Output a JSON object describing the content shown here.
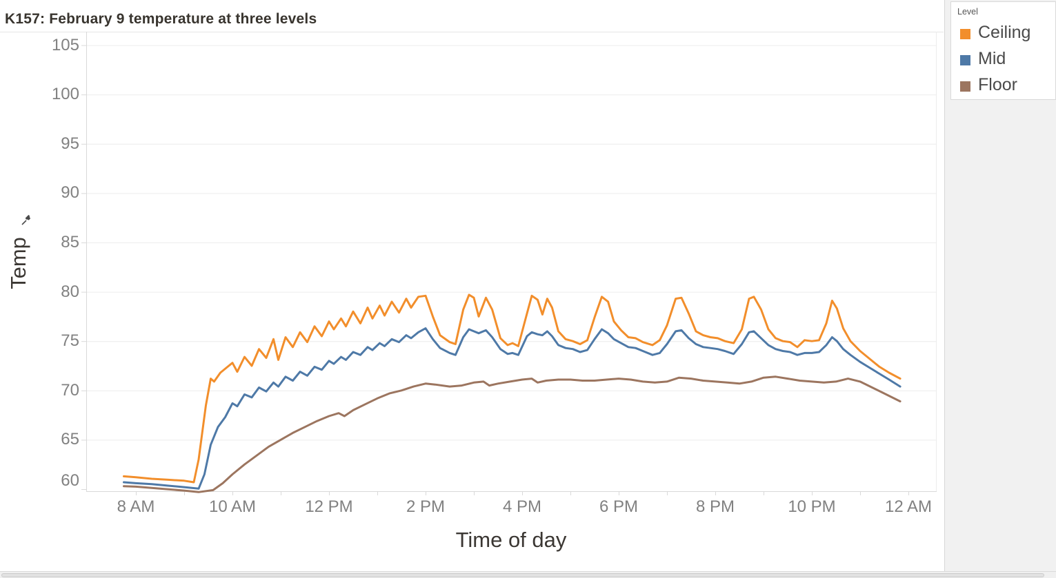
{
  "title": "K157: February 9 temperature at three levels",
  "legend": {
    "title": "Level"
  },
  "icons": {
    "y_axis_pin": "pushpin-icon"
  },
  "chart_data": {
    "type": "line",
    "title": "K157: February 9 temperature at three levels",
    "xlabel": "Time of day",
    "ylabel": "Temp",
    "x_unit": "hours since 8 AM",
    "x_tick_hours": [
      0,
      2,
      4,
      6,
      8,
      10,
      12,
      14,
      16
    ],
    "x_tick_labels": [
      "8 AM",
      "10 AM",
      "12 PM",
      "2 PM",
      "4 PM",
      "6 PM",
      "8 PM",
      "10 PM",
      "12 AM"
    ],
    "x_minor_tick_hours": [
      0,
      1,
      2,
      3,
      4,
      5,
      6,
      7,
      8,
      9,
      10,
      11,
      12,
      13,
      14,
      15,
      16
    ],
    "y_ticks": [
      60,
      65,
      70,
      75,
      80,
      85,
      90,
      95,
      100,
      105
    ],
    "ylim": [
      59.8,
      106.4
    ],
    "xlim_hours": [
      -1.03,
      16.6
    ],
    "grid": "horizontal",
    "legend_title": "Level",
    "legend_position": "top-right",
    "series": [
      {
        "name": "Ceiling",
        "color": "#f28e2b",
        "points": [
          [
            -0.25,
            61.3
          ],
          [
            0,
            61.2
          ],
          [
            0.33,
            61.05
          ],
          [
            0.67,
            60.95
          ],
          [
            1.0,
            60.85
          ],
          [
            1.2,
            60.7
          ],
          [
            1.3,
            63.0
          ],
          [
            1.45,
            68.5
          ],
          [
            1.55,
            71.2
          ],
          [
            1.62,
            70.9
          ],
          [
            1.75,
            71.8
          ],
          [
            1.9,
            72.4
          ],
          [
            2.0,
            72.8
          ],
          [
            2.1,
            71.9
          ],
          [
            2.25,
            73.4
          ],
          [
            2.4,
            72.5
          ],
          [
            2.55,
            74.2
          ],
          [
            2.7,
            73.3
          ],
          [
            2.85,
            75.2
          ],
          [
            2.95,
            73.1
          ],
          [
            3.1,
            75.4
          ],
          [
            3.25,
            74.4
          ],
          [
            3.4,
            75.9
          ],
          [
            3.55,
            74.9
          ],
          [
            3.7,
            76.5
          ],
          [
            3.85,
            75.5
          ],
          [
            4.0,
            77.0
          ],
          [
            4.1,
            76.2
          ],
          [
            4.25,
            77.3
          ],
          [
            4.35,
            76.5
          ],
          [
            4.5,
            78.0
          ],
          [
            4.65,
            76.8
          ],
          [
            4.8,
            78.4
          ],
          [
            4.9,
            77.3
          ],
          [
            5.05,
            78.6
          ],
          [
            5.15,
            77.6
          ],
          [
            5.3,
            79.0
          ],
          [
            5.45,
            77.9
          ],
          [
            5.6,
            79.3
          ],
          [
            5.7,
            78.4
          ],
          [
            5.85,
            79.5
          ],
          [
            6.0,
            79.6
          ],
          [
            6.15,
            77.5
          ],
          [
            6.3,
            75.6
          ],
          [
            6.5,
            74.9
          ],
          [
            6.62,
            74.7
          ],
          [
            6.78,
            78.2
          ],
          [
            6.9,
            79.7
          ],
          [
            7.0,
            79.4
          ],
          [
            7.1,
            77.5
          ],
          [
            7.25,
            79.4
          ],
          [
            7.38,
            78.2
          ],
          [
            7.55,
            75.3
          ],
          [
            7.7,
            74.6
          ],
          [
            7.8,
            74.8
          ],
          [
            7.92,
            74.5
          ],
          [
            8.1,
            77.8
          ],
          [
            8.2,
            79.6
          ],
          [
            8.32,
            79.2
          ],
          [
            8.42,
            77.7
          ],
          [
            8.52,
            79.3
          ],
          [
            8.62,
            78.4
          ],
          [
            8.75,
            76.0
          ],
          [
            8.9,
            75.2
          ],
          [
            9.05,
            75.0
          ],
          [
            9.2,
            74.7
          ],
          [
            9.35,
            75.1
          ],
          [
            9.5,
            77.4
          ],
          [
            9.65,
            79.5
          ],
          [
            9.78,
            79.0
          ],
          [
            9.9,
            77.0
          ],
          [
            10.05,
            76.1
          ],
          [
            10.2,
            75.4
          ],
          [
            10.35,
            75.3
          ],
          [
            10.5,
            74.9
          ],
          [
            10.7,
            74.6
          ],
          [
            10.85,
            75.1
          ],
          [
            11.0,
            76.6
          ],
          [
            11.18,
            79.3
          ],
          [
            11.3,
            79.4
          ],
          [
            11.45,
            77.8
          ],
          [
            11.6,
            76.0
          ],
          [
            11.75,
            75.6
          ],
          [
            11.9,
            75.4
          ],
          [
            12.05,
            75.3
          ],
          [
            12.2,
            75.0
          ],
          [
            12.38,
            74.8
          ],
          [
            12.55,
            76.2
          ],
          [
            12.7,
            79.3
          ],
          [
            12.8,
            79.5
          ],
          [
            12.95,
            78.2
          ],
          [
            13.1,
            76.2
          ],
          [
            13.25,
            75.3
          ],
          [
            13.4,
            75.0
          ],
          [
            13.55,
            74.9
          ],
          [
            13.7,
            74.4
          ],
          [
            13.85,
            75.1
          ],
          [
            14.0,
            75.0
          ],
          [
            14.15,
            75.1
          ],
          [
            14.3,
            76.8
          ],
          [
            14.42,
            79.1
          ],
          [
            14.52,
            78.3
          ],
          [
            14.65,
            76.3
          ],
          [
            14.8,
            75.0
          ],
          [
            15.0,
            74.0
          ],
          [
            15.2,
            73.2
          ],
          [
            15.4,
            72.4
          ],
          [
            15.6,
            71.8
          ],
          [
            15.83,
            71.2
          ]
        ]
      },
      {
        "name": "Mid",
        "color": "#4e79a7",
        "points": [
          [
            -0.25,
            60.7
          ],
          [
            0,
            60.6
          ],
          [
            0.33,
            60.5
          ],
          [
            0.67,
            60.35
          ],
          [
            1.0,
            60.2
          ],
          [
            1.3,
            60.05
          ],
          [
            1.42,
            61.5
          ],
          [
            1.55,
            64.5
          ],
          [
            1.7,
            66.3
          ],
          [
            1.85,
            67.3
          ],
          [
            2.0,
            68.7
          ],
          [
            2.1,
            68.4
          ],
          [
            2.25,
            69.6
          ],
          [
            2.4,
            69.3
          ],
          [
            2.55,
            70.3
          ],
          [
            2.7,
            69.9
          ],
          [
            2.85,
            70.8
          ],
          [
            2.95,
            70.4
          ],
          [
            3.1,
            71.4
          ],
          [
            3.25,
            71.0
          ],
          [
            3.4,
            71.9
          ],
          [
            3.55,
            71.5
          ],
          [
            3.7,
            72.4
          ],
          [
            3.85,
            72.1
          ],
          [
            4.0,
            73.0
          ],
          [
            4.1,
            72.7
          ],
          [
            4.25,
            73.4
          ],
          [
            4.35,
            73.1
          ],
          [
            4.5,
            73.9
          ],
          [
            4.65,
            73.6
          ],
          [
            4.8,
            74.4
          ],
          [
            4.9,
            74.1
          ],
          [
            5.05,
            74.8
          ],
          [
            5.15,
            74.5
          ],
          [
            5.3,
            75.2
          ],
          [
            5.45,
            74.9
          ],
          [
            5.6,
            75.6
          ],
          [
            5.7,
            75.3
          ],
          [
            5.85,
            75.9
          ],
          [
            6.0,
            76.3
          ],
          [
            6.15,
            75.2
          ],
          [
            6.3,
            74.3
          ],
          [
            6.5,
            73.8
          ],
          [
            6.62,
            73.6
          ],
          [
            6.78,
            75.4
          ],
          [
            6.9,
            76.2
          ],
          [
            7.0,
            76.0
          ],
          [
            7.1,
            75.8
          ],
          [
            7.25,
            76.1
          ],
          [
            7.38,
            75.4
          ],
          [
            7.55,
            74.2
          ],
          [
            7.7,
            73.7
          ],
          [
            7.8,
            73.8
          ],
          [
            7.92,
            73.6
          ],
          [
            8.1,
            75.5
          ],
          [
            8.2,
            75.9
          ],
          [
            8.32,
            75.7
          ],
          [
            8.42,
            75.6
          ],
          [
            8.52,
            76.0
          ],
          [
            8.62,
            75.5
          ],
          [
            8.75,
            74.6
          ],
          [
            8.9,
            74.3
          ],
          [
            9.05,
            74.2
          ],
          [
            9.2,
            73.9
          ],
          [
            9.35,
            74.1
          ],
          [
            9.5,
            75.2
          ],
          [
            9.65,
            76.2
          ],
          [
            9.78,
            75.8
          ],
          [
            9.9,
            75.2
          ],
          [
            10.05,
            74.8
          ],
          [
            10.2,
            74.4
          ],
          [
            10.35,
            74.3
          ],
          [
            10.5,
            74.0
          ],
          [
            10.7,
            73.6
          ],
          [
            10.85,
            73.8
          ],
          [
            11.0,
            74.7
          ],
          [
            11.18,
            76.0
          ],
          [
            11.3,
            76.1
          ],
          [
            11.45,
            75.3
          ],
          [
            11.6,
            74.7
          ],
          [
            11.75,
            74.4
          ],
          [
            11.9,
            74.3
          ],
          [
            12.05,
            74.2
          ],
          [
            12.2,
            74.0
          ],
          [
            12.38,
            73.7
          ],
          [
            12.55,
            74.7
          ],
          [
            12.7,
            75.9
          ],
          [
            12.8,
            76.0
          ],
          [
            12.95,
            75.3
          ],
          [
            13.1,
            74.6
          ],
          [
            13.25,
            74.2
          ],
          [
            13.4,
            74.0
          ],
          [
            13.55,
            73.9
          ],
          [
            13.7,
            73.6
          ],
          [
            13.85,
            73.8
          ],
          [
            14.0,
            73.8
          ],
          [
            14.15,
            73.9
          ],
          [
            14.3,
            74.6
          ],
          [
            14.42,
            75.4
          ],
          [
            14.52,
            75.0
          ],
          [
            14.65,
            74.2
          ],
          [
            14.8,
            73.6
          ],
          [
            15.0,
            72.9
          ],
          [
            15.2,
            72.3
          ],
          [
            15.4,
            71.7
          ],
          [
            15.6,
            71.1
          ],
          [
            15.83,
            70.4
          ]
        ]
      },
      {
        "name": "Floor",
        "color": "#9c755f",
        "points": [
          [
            -0.25,
            60.3
          ],
          [
            0,
            60.25
          ],
          [
            0.5,
            60.05
          ],
          [
            1.0,
            59.85
          ],
          [
            1.3,
            59.7
          ],
          [
            1.6,
            59.9
          ],
          [
            1.8,
            60.6
          ],
          [
            2.0,
            61.5
          ],
          [
            2.25,
            62.5
          ],
          [
            2.5,
            63.4
          ],
          [
            2.75,
            64.3
          ],
          [
            3.0,
            65.0
          ],
          [
            3.25,
            65.7
          ],
          [
            3.5,
            66.3
          ],
          [
            3.75,
            66.9
          ],
          [
            4.0,
            67.4
          ],
          [
            4.2,
            67.7
          ],
          [
            4.32,
            67.4
          ],
          [
            4.5,
            68.0
          ],
          [
            4.75,
            68.6
          ],
          [
            5.0,
            69.2
          ],
          [
            5.25,
            69.7
          ],
          [
            5.5,
            70.0
          ],
          [
            5.75,
            70.4
          ],
          [
            6.0,
            70.7
          ],
          [
            6.2,
            70.6
          ],
          [
            6.5,
            70.4
          ],
          [
            6.75,
            70.5
          ],
          [
            7.0,
            70.8
          ],
          [
            7.2,
            70.9
          ],
          [
            7.32,
            70.5
          ],
          [
            7.5,
            70.7
          ],
          [
            7.75,
            70.9
          ],
          [
            8.0,
            71.1
          ],
          [
            8.2,
            71.2
          ],
          [
            8.32,
            70.8
          ],
          [
            8.5,
            71.0
          ],
          [
            8.75,
            71.1
          ],
          [
            9.0,
            71.1
          ],
          [
            9.25,
            71.0
          ],
          [
            9.5,
            71.0
          ],
          [
            9.75,
            71.1
          ],
          [
            10.0,
            71.2
          ],
          [
            10.25,
            71.1
          ],
          [
            10.5,
            70.9
          ],
          [
            10.75,
            70.8
          ],
          [
            11.0,
            70.9
          ],
          [
            11.25,
            71.3
          ],
          [
            11.5,
            71.2
          ],
          [
            11.75,
            71.0
          ],
          [
            12.0,
            70.9
          ],
          [
            12.25,
            70.8
          ],
          [
            12.5,
            70.7
          ],
          [
            12.75,
            70.9
          ],
          [
            13.0,
            71.3
          ],
          [
            13.25,
            71.4
          ],
          [
            13.5,
            71.2
          ],
          [
            13.75,
            71.0
          ],
          [
            14.0,
            70.9
          ],
          [
            14.25,
            70.8
          ],
          [
            14.5,
            70.9
          ],
          [
            14.75,
            71.2
          ],
          [
            15.0,
            70.9
          ],
          [
            15.25,
            70.3
          ],
          [
            15.5,
            69.7
          ],
          [
            15.83,
            68.9
          ]
        ]
      }
    ],
    "colors": {
      "axis_line": "#d9d9d9",
      "gridline": "#ececec",
      "tick_label": "#818181",
      "axis_title": "#3b3733"
    }
  }
}
